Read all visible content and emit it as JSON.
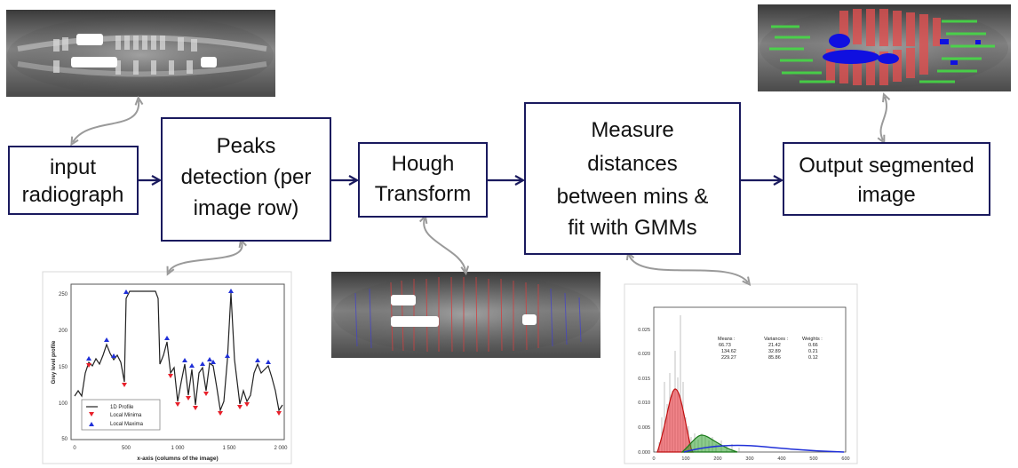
{
  "steps": {
    "input": {
      "lines": [
        "input",
        "radiograph"
      ]
    },
    "peaks": {
      "lines": [
        "Peaks",
        "detection (per",
        "image row)"
      ]
    },
    "hough": {
      "lines": [
        "Hough",
        "Transform"
      ]
    },
    "measure": {
      "lines": [
        "Measure",
        "distances",
        "between mins &",
        "fit with GMMs"
      ]
    },
    "output": {
      "lines": [
        "Output segmented",
        "image"
      ]
    }
  },
  "colors": {
    "box_border": "#1a1a5e",
    "flow_arrow": "#1a1a5e",
    "link_arrow": "#9a9a9a",
    "minima": "#e8202a",
    "maxima": "#2030d8",
    "overlay_red": "#e05050",
    "overlay_green": "#44e044",
    "overlay_blue": "#1010e0"
  },
  "profile_chart": {
    "ylabel": "Grey level profile",
    "xlabel": "x-axis (columns of the image)",
    "yticks": [
      "250",
      "200",
      "150",
      "100",
      "50"
    ],
    "xticks": [
      "0",
      "500",
      "1 000",
      "1 500",
      "2 000"
    ],
    "legend": [
      "1D Profile",
      "Local Minima",
      "Local Maxima"
    ]
  },
  "histogram_chart": {
    "yticks": [
      "0.025",
      "0.020",
      "0.015",
      "0.010",
      "0.005",
      "0.000"
    ],
    "xticks": [
      "0",
      "100",
      "200",
      "300",
      "400",
      "500",
      "600"
    ],
    "table_headers": [
      "Means :",
      "Variances :",
      "Weights :"
    ],
    "table_rows": [
      [
        "66.73",
        "21.42",
        "0.66"
      ],
      [
        "134.62",
        "32.89",
        "0.21"
      ],
      [
        "229.27",
        "85.86",
        "0.12"
      ]
    ]
  }
}
